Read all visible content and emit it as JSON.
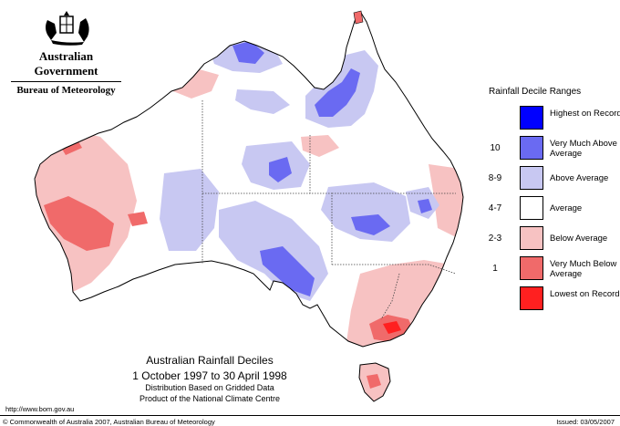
{
  "header": {
    "government": "Australian Government",
    "bureau": "Bureau of Meteorology"
  },
  "legend": {
    "title": "Rainfall Decile Ranges",
    "items": [
      {
        "range": "",
        "label": "Highest on Record",
        "color": "#0000ff"
      },
      {
        "range": "10",
        "label": "Very Much Above Average",
        "color": "#6a6af2"
      },
      {
        "range": "8-9",
        "label": "Above Average",
        "color": "#c8c8f2"
      },
      {
        "range": "4-7",
        "label": "Average",
        "color": "#ffffff"
      },
      {
        "range": "2-3",
        "label": "Below Average",
        "color": "#f7c2c2"
      },
      {
        "range": "1",
        "label": "Very Much Below Average",
        "color": "#f06a6a"
      },
      {
        "range": "",
        "label": "Lowest on Record",
        "color": "#ff2020"
      }
    ]
  },
  "map": {
    "title": "Australian Rainfall Deciles",
    "period": "1 October 1997 to 30 April 1998",
    "subtitle_1": "Distribution Based on Gridded Data",
    "subtitle_2": "Product of the National Climate Centre"
  },
  "footer": {
    "url": "http://www.bom.gov.au",
    "copyright": "© Commonwealth of Australia 2007, Australian Bureau of Meteorology",
    "issued": "Issued: 03/05/2007"
  }
}
